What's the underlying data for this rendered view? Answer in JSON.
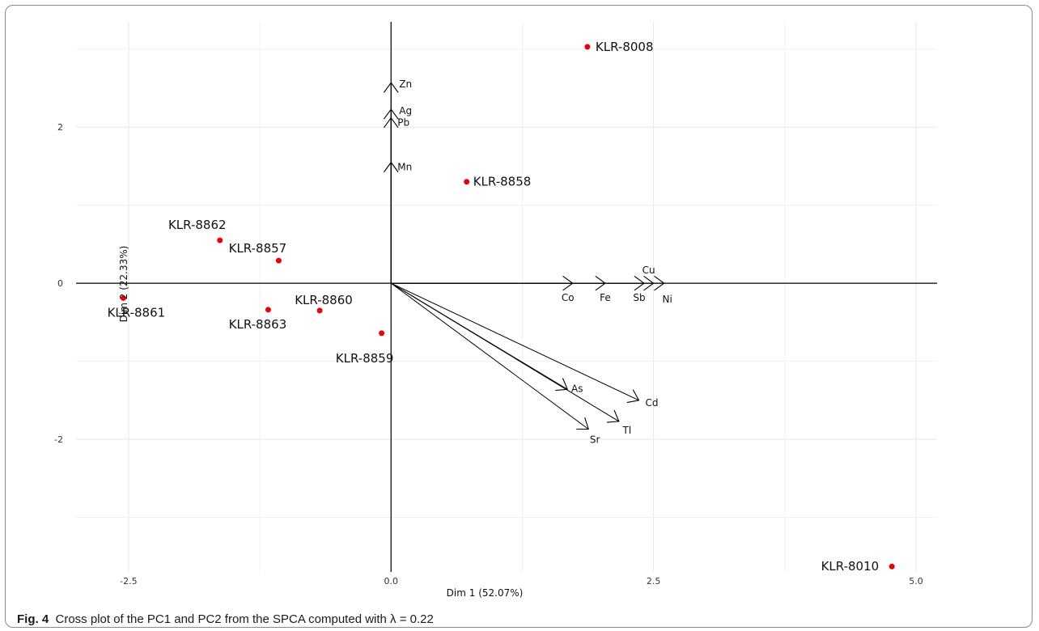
{
  "figure": {
    "caption_label": "Fig. 4",
    "caption_text": "Cross plot of the PC1 and PC2 from the SPCA computed with λ = 0.22"
  },
  "chart_data": {
    "type": "scatter",
    "xlabel": "Dim 1 (52.07%)",
    "ylabel": "Dim 2 (22.33%)",
    "xlim": [
      -3.0,
      5.2
    ],
    "ylim": [
      -3.7,
      3.35
    ],
    "xticks": [
      -2.5,
      0.0,
      2.5,
      5.0
    ],
    "xtick_labels": [
      "-2.5",
      "0.0",
      "2.5",
      "5.0"
    ],
    "yticks": [
      -2,
      0,
      2
    ],
    "ytick_labels": [
      "-2",
      "0",
      "2"
    ],
    "grid": true,
    "point_color": "#e8000b",
    "points": [
      {
        "label": "KLR-8008",
        "x": 1.87,
        "y": 3.03
      },
      {
        "label": "KLR-8858",
        "x": 0.72,
        "y": 1.3
      },
      {
        "label": "KLR-8862",
        "x": -1.63,
        "y": 0.55
      },
      {
        "label": "KLR-8857",
        "x": -1.07,
        "y": 0.29
      },
      {
        "label": "KLR-8861",
        "x": -2.55,
        "y": -0.19
      },
      {
        "label": "KLR-8863",
        "x": -1.17,
        "y": -0.34
      },
      {
        "label": "KLR-8860",
        "x": -0.68,
        "y": -0.35
      },
      {
        "label": "KLR-8859",
        "x": -0.09,
        "y": -0.64
      },
      {
        "label": "KLR-8010",
        "x": 4.77,
        "y": -3.63
      }
    ],
    "variables": [
      {
        "label": "Zn",
        "x": 0.0,
        "y": 2.57
      },
      {
        "label": "Ag",
        "x": 0.0,
        "y": 2.23
      },
      {
        "label": "Pb",
        "x": 0.0,
        "y": 2.12
      },
      {
        "label": "Mn",
        "x": 0.0,
        "y": 1.55
      },
      {
        "label": "Co",
        "x": 1.73,
        "y": 0.0
      },
      {
        "label": "Fe",
        "x": 2.04,
        "y": 0.0
      },
      {
        "label": "Sb",
        "x": 2.41,
        "y": 0.0
      },
      {
        "label": "Cu",
        "x": 2.5,
        "y": 0.0
      },
      {
        "label": "Ni",
        "x": 2.6,
        "y": 0.0
      },
      {
        "label": "As",
        "x": 1.68,
        "y": -1.36
      },
      {
        "label": "Cd",
        "x": 2.36,
        "y": -1.5
      },
      {
        "label": "Tl",
        "x": 2.17,
        "y": -1.77
      },
      {
        "label": "Sr",
        "x": 1.88,
        "y": -1.87
      }
    ]
  }
}
